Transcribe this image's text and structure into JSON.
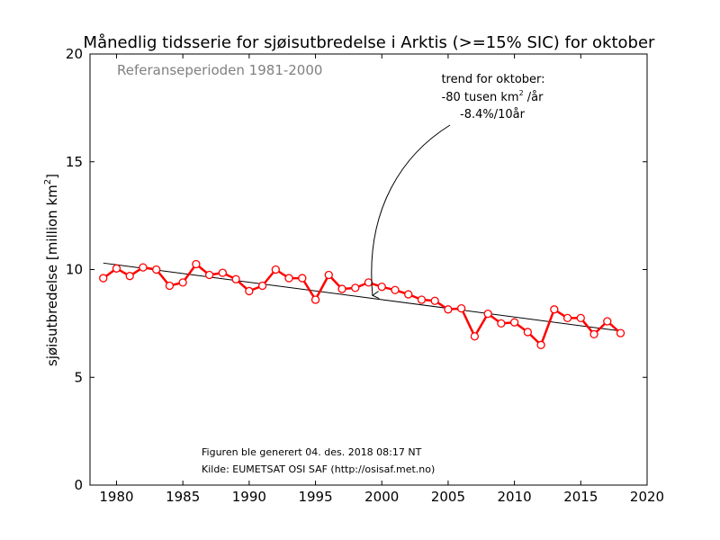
{
  "chart_data": {
    "type": "line",
    "title": "Månedlig tidsserie for sjøisutbredelse i Arktis (>=15% SIC) for oktober",
    "subtitle": "Referanseperioden 1981-2000",
    "ylabel_main": "sjøisutbredelse [million km",
    "ylabel_sup": "2",
    "ylabel_end": "]",
    "xlabel": "",
    "xlim": [
      1978,
      2020
    ],
    "ylim": [
      0,
      20
    ],
    "xticks": [
      1980,
      1985,
      1990,
      1995,
      2000,
      2005,
      2010,
      2015,
      2020
    ],
    "yticks": [
      0,
      5,
      10,
      15,
      20
    ],
    "grid": false,
    "series": [
      {
        "color": "#ff0000",
        "x": [
          1979,
          1980,
          1981,
          1982,
          1983,
          1984,
          1985,
          1986,
          1987,
          1988,
          1989,
          1990,
          1991,
          1992,
          1993,
          1994,
          1995,
          1996,
          1997,
          1998,
          1999,
          2000,
          2001,
          2002,
          2003,
          2004,
          2005,
          2006,
          2007,
          2008,
          2009,
          2010,
          2011,
          2012,
          2013,
          2014,
          2015,
          2016,
          2017,
          2018
        ],
        "y": [
          9.6,
          10.05,
          9.7,
          10.1,
          10.0,
          9.25,
          9.4,
          10.25,
          9.75,
          9.85,
          9.55,
          9.0,
          9.25,
          10.0,
          9.6,
          9.6,
          8.6,
          9.75,
          9.1,
          9.15,
          9.4,
          9.2,
          9.05,
          8.85,
          8.6,
          8.55,
          8.15,
          8.2,
          6.9,
          7.95,
          7.5,
          7.55,
          7.1,
          6.5,
          8.15,
          7.75,
          7.75,
          7.0,
          7.6,
          7.05
        ]
      }
    ],
    "trend": {
      "color": "#000000",
      "x": [
        1979,
        2018
      ],
      "y": [
        10.3,
        7.15
      ]
    },
    "annotation": {
      "line1": "trend for oktober:",
      "line2_main": "-80 tusen km",
      "line2_sup": "2",
      "line2_end": " /år",
      "line3": "-8.4%/10år",
      "arrow_target": {
        "x": 1999.3,
        "y": 8.8
      }
    },
    "footnote": {
      "line1": "Figuren ble generert 04. des. 2018 08:17 NT",
      "line2": "Kilde: EUMETSAT OSI SAF (http://osisaf.met.no)"
    }
  }
}
